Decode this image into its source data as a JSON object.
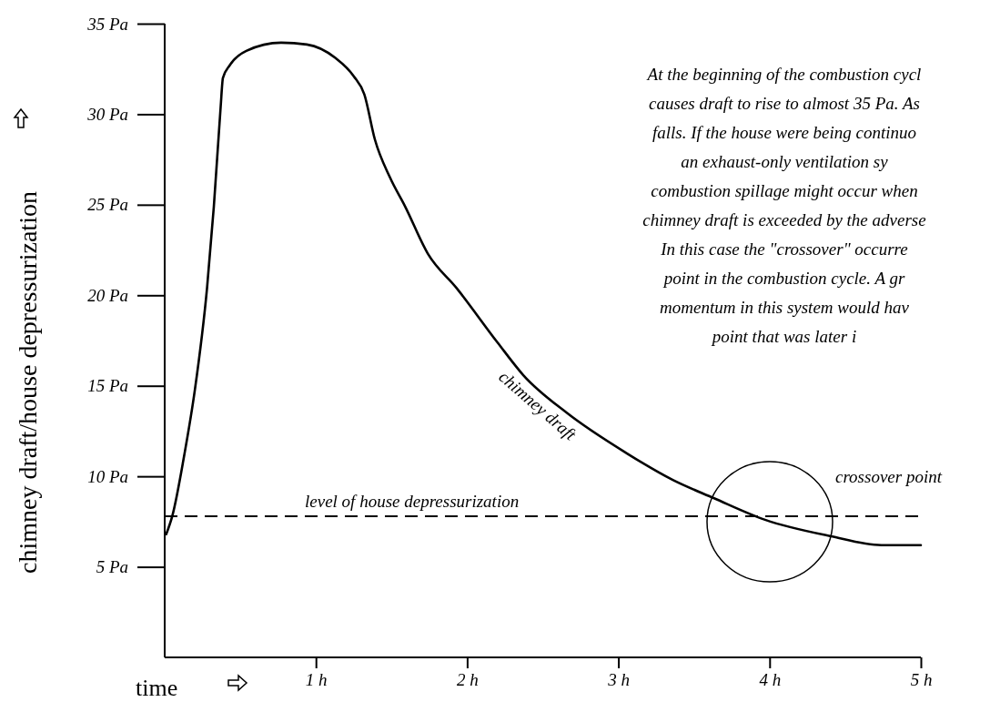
{
  "chart_data": {
    "type": "line",
    "xlabel": "time",
    "ylabel": "chimney draft/house depressurization",
    "x": [
      0.01,
      0.05,
      0.13,
      0.2,
      0.28,
      0.325,
      0.37,
      0.385,
      0.43,
      0.54,
      0.77,
      0.94,
      1.13,
      1.25,
      1.32,
      1.39,
      1.49,
      1.59,
      1.74,
      1.93,
      2.2,
      2.37,
      2.66,
      3.05,
      3.36,
      3.63,
      3.97,
      4.4,
      4.74,
      5.0
    ],
    "series": [
      {
        "name": "chimney draft",
        "color": "#000000",
        "values": [
          6.8,
          7.8,
          11.2,
          14.8,
          20.4,
          24.9,
          30.4,
          32,
          32.7,
          33.5,
          33.95,
          33.85,
          33.1,
          32.1,
          31.1,
          28.6,
          26.5,
          24.9,
          22.3,
          20.4,
          17.4,
          15.6,
          13.5,
          11.3,
          9.8,
          8.8,
          7.6,
          6.7,
          6.2,
          6.2
        ]
      }
    ],
    "xlim": [
      0,
      5
    ],
    "ylim": [
      0,
      35
    ],
    "xticks": [
      {
        "value": 1,
        "label": "1 h"
      },
      {
        "value": 2,
        "label": "2 h"
      },
      {
        "value": 3,
        "label": "3 h"
      },
      {
        "value": 4,
        "label": "4 h"
      },
      {
        "value": 5,
        "label": "5 h"
      }
    ],
    "yticks": [
      {
        "value": 5,
        "label": "5 Pa"
      },
      {
        "value": 10,
        "label": "10 Pa"
      },
      {
        "value": 15,
        "label": "15 Pa"
      },
      {
        "value": 20,
        "label": "20 Pa"
      },
      {
        "value": 25,
        "label": "25 Pa"
      },
      {
        "value": 30,
        "label": "30 Pa"
      },
      {
        "value": 35,
        "label": "35 Pa"
      }
    ],
    "ref_lines": [
      {
        "axis": "y",
        "value": 7.8,
        "label": "level of house depressurization",
        "color": "#000000",
        "line_style": "dashed"
      }
    ],
    "annotations": [
      "crossover point",
      "At the beginning of the combustion cycl\ncauses draft to rise to almost 35 Pa.  As\nfalls.  If the house were being continuo\nan exhaust-only ventilation sy\ncombustion spillage might occur when\nchimney draft is exceeded by the adverse\nIn this case the \"crossover\" occurre\npoint in the combustion cycle.  A gr\nmomentum in this system would hav\npoint that was later i"
    ],
    "grid": false,
    "legend": false,
    "marker": "none",
    "line_style": "solid"
  }
}
